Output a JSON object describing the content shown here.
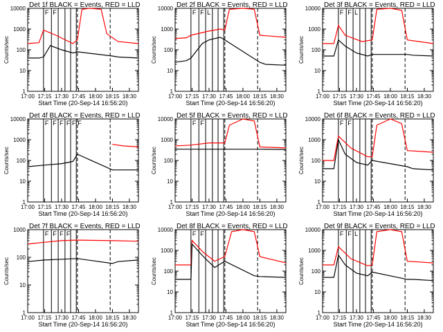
{
  "chart_data": {
    "type": "line",
    "x_ticks": [
      "17:00",
      "17:15",
      "17:30",
      "17:45",
      "18:00",
      "18:15",
      "18:30"
    ],
    "x_range": [
      "17:00",
      "18:38"
    ],
    "ylabel": "Counts/sec",
    "xlabel": "Start Time (20-Sep-14 16:56:20)",
    "series_colors": {
      "events": "#000000",
      "lld": "#ff0000"
    },
    "panels": [
      {
        "title": "Det 1f BLACK = Events, RED = LLD",
        "ylim": [
          1,
          10000
        ],
        "y_ticks": [
          "1",
          "10",
          "100",
          "1000",
          "10000"
        ],
        "marks": [
          "F",
          "F"
        ],
        "events": {
          "x": [
            "17:00",
            "17:10",
            "17:14",
            "17:20",
            "17:30",
            "17:40",
            "17:44",
            "18:15",
            "18:20",
            "18:38"
          ],
          "y": [
            40,
            40,
            45,
            160,
            100,
            70,
            80,
            50,
            45,
            40
          ]
        },
        "lld": {
          "x": [
            "17:00",
            "17:10",
            "17:14",
            "17:25",
            "17:40",
            "17:44",
            "17:48",
            "17:55",
            "18:05",
            "18:10",
            "18:20",
            "18:38"
          ],
          "y": [
            200,
            220,
            900,
            500,
            200,
            300,
            9000,
            12000,
            9000,
            600,
            250,
            200
          ]
        }
      },
      {
        "title": "Det 2f BLACK = Events, RED = LLD",
        "ylim": [
          1,
          10000
        ],
        "y_ticks": [
          "1",
          "10",
          "100",
          "1000",
          "10000"
        ],
        "marks": [
          "F",
          "F",
          "L"
        ],
        "events": {
          "x": [
            "17:00",
            "17:10",
            "17:14",
            "17:24",
            "17:30",
            "17:40",
            "17:44",
            "18:15",
            "18:20",
            "18:38"
          ],
          "y": [
            25,
            30,
            40,
            200,
            300,
            400,
            300,
            25,
            20,
            18
          ]
        },
        "lld": {
          "x": [
            "17:00",
            "17:10",
            "17:14",
            "17:30",
            "17:40",
            "17:44",
            "17:48",
            "18:00",
            "18:10",
            "18:15",
            "18:38"
          ],
          "y": [
            350,
            380,
            500,
            800,
            1000,
            900,
            9000,
            12000,
            9000,
            500,
            400
          ]
        }
      },
      {
        "title": "Det 3f BLACK = Events, RED = LLD",
        "ylim": [
          1,
          10000
        ],
        "y_ticks": [
          "1",
          "10",
          "100",
          "1000",
          "10000"
        ],
        "marks": [
          "F",
          "F",
          "L"
        ],
        "events": {
          "x": [
            "17:00",
            "17:10",
            "17:14",
            "17:20",
            "17:30",
            "17:40",
            "17:44",
            "18:15",
            "18:20",
            "18:38"
          ],
          "y": [
            50,
            50,
            300,
            150,
            70,
            50,
            60,
            60,
            55,
            50
          ]
        },
        "lld": {
          "x": [
            "17:00",
            "17:10",
            "17:14",
            "17:20",
            "17:35",
            "17:44",
            "17:48",
            "18:00",
            "18:10",
            "18:15",
            "18:38"
          ],
          "y": [
            200,
            200,
            1500,
            500,
            250,
            300,
            9000,
            12000,
            8000,
            300,
            200
          ]
        }
      },
      {
        "title": "Det 4f BLACK = Events, RED = LLD",
        "ylim": [
          1,
          10000
        ],
        "y_ticks": [
          "1",
          "10",
          "100",
          "1000",
          "10000"
        ],
        "marks": [
          "F",
          "F",
          "F",
          "F",
          "F",
          "F"
        ],
        "events": {
          "x": [
            "17:00",
            "17:15",
            "17:30",
            "17:40",
            "17:44",
            "18:15",
            "18:38"
          ],
          "y": [
            50,
            60,
            70,
            90,
            200,
            35,
            35
          ]
        },
        "lld": {
          "x": [
            "18:15",
            "18:25",
            "18:38"
          ],
          "y": [
            600,
            500,
            450
          ]
        }
      },
      {
        "title": "Det 5f BLACK = Events, RED = LLD",
        "ylim": [
          1,
          10000
        ],
        "y_ticks": [
          "1",
          "10",
          "100",
          "1000",
          "10000"
        ],
        "marks": [
          "F",
          "F"
        ],
        "events": {
          "x": [
            "17:00",
            "17:20",
            "17:44",
            "18:15",
            "18:38"
          ],
          "y": [
            350,
            350,
            350,
            350,
            340
          ]
        },
        "lld": {
          "x": [
            "17:00",
            "17:14",
            "17:30",
            "17:44",
            "17:48",
            "18:00",
            "18:10",
            "18:15",
            "18:38"
          ],
          "y": [
            500,
            550,
            700,
            700,
            5000,
            10000,
            8000,
            450,
            400
          ]
        }
      },
      {
        "title": "Det 6f BLACK = Events, RED = LLD",
        "ylim": [
          1,
          10000
        ],
        "y_ticks": [
          "1",
          "10",
          "100",
          "1000",
          "10000"
        ],
        "marks": [
          "F",
          "F"
        ],
        "events": {
          "x": [
            "17:00",
            "17:10",
            "17:14",
            "17:20",
            "17:30",
            "17:40",
            "17:44",
            "18:15",
            "18:20",
            "18:38"
          ],
          "y": [
            40,
            40,
            1000,
            200,
            80,
            60,
            100,
            50,
            40,
            35
          ]
        },
        "lld": {
          "x": [
            "17:00",
            "17:10",
            "17:14",
            "17:25",
            "17:40",
            "17:44",
            "17:48",
            "18:00",
            "18:10",
            "18:15",
            "18:38"
          ],
          "y": [
            100,
            100,
            1500,
            400,
            150,
            150,
            5000,
            10000,
            6000,
            300,
            250
          ]
        }
      },
      {
        "title": "Det 7f BLACK = Events, RED = LLD",
        "ylim": [
          1,
          1000
        ],
        "y_ticks": [
          "1",
          "10",
          "100",
          "1000"
        ],
        "marks": [
          "F",
          "F",
          "F",
          "F"
        ],
        "events": {
          "x": [
            "17:00",
            "17:15",
            "17:30",
            "17:44",
            "18:15",
            "18:20",
            "18:38"
          ],
          "y": [
            70,
            80,
            85,
            90,
            60,
            70,
            80
          ]
        },
        "lld": {
          "x": [
            "17:00",
            "17:15",
            "17:30",
            "17:44",
            "18:15",
            "18:38"
          ],
          "y": [
            300,
            350,
            400,
            420,
            400,
            380
          ]
        }
      },
      {
        "title": "Det 8f BLACK = Events, RED = LLD",
        "ylim": [
          1,
          10000
        ],
        "y_ticks": [
          "1",
          "10",
          "100",
          "1000",
          "10000"
        ],
        "marks": [
          "F",
          "F"
        ],
        "events": {
          "x": [
            "17:00",
            "17:14",
            "17:15",
            "17:25",
            "17:35",
            "17:44",
            "18:10",
            "18:15",
            "18:38"
          ],
          "y": [
            40,
            40,
            2000,
            500,
            150,
            300,
            60,
            55,
            50
          ]
        },
        "lld": {
          "x": [
            "17:00",
            "17:14",
            "17:15",
            "17:25",
            "17:35",
            "17:44",
            "17:50",
            "18:00",
            "18:10",
            "18:15",
            "18:38"
          ],
          "y": [
            200,
            200,
            3000,
            800,
            300,
            500,
            8000,
            12000,
            8000,
            500,
            250
          ]
        }
      },
      {
        "title": "Det 9f BLACK = Events, RED = LLD",
        "ylim": [
          1,
          10000
        ],
        "y_ticks": [
          "1",
          "10",
          "100",
          "1000",
          "10000"
        ],
        "marks": [
          "F",
          "F",
          "L"
        ],
        "events": {
          "x": [
            "17:00",
            "17:10",
            "17:14",
            "17:20",
            "17:30",
            "17:40",
            "17:44",
            "18:15",
            "18:20",
            "18:38"
          ],
          "y": [
            50,
            50,
            600,
            200,
            80,
            60,
            90,
            40,
            40,
            35
          ]
        },
        "lld": {
          "x": [
            "17:00",
            "17:10",
            "17:14",
            "17:25",
            "17:40",
            "17:44",
            "17:48",
            "18:00",
            "18:10",
            "18:15",
            "18:38"
          ],
          "y": [
            200,
            200,
            1500,
            400,
            180,
            200,
            8000,
            12000,
            8000,
            300,
            250
          ]
        }
      }
    ]
  }
}
